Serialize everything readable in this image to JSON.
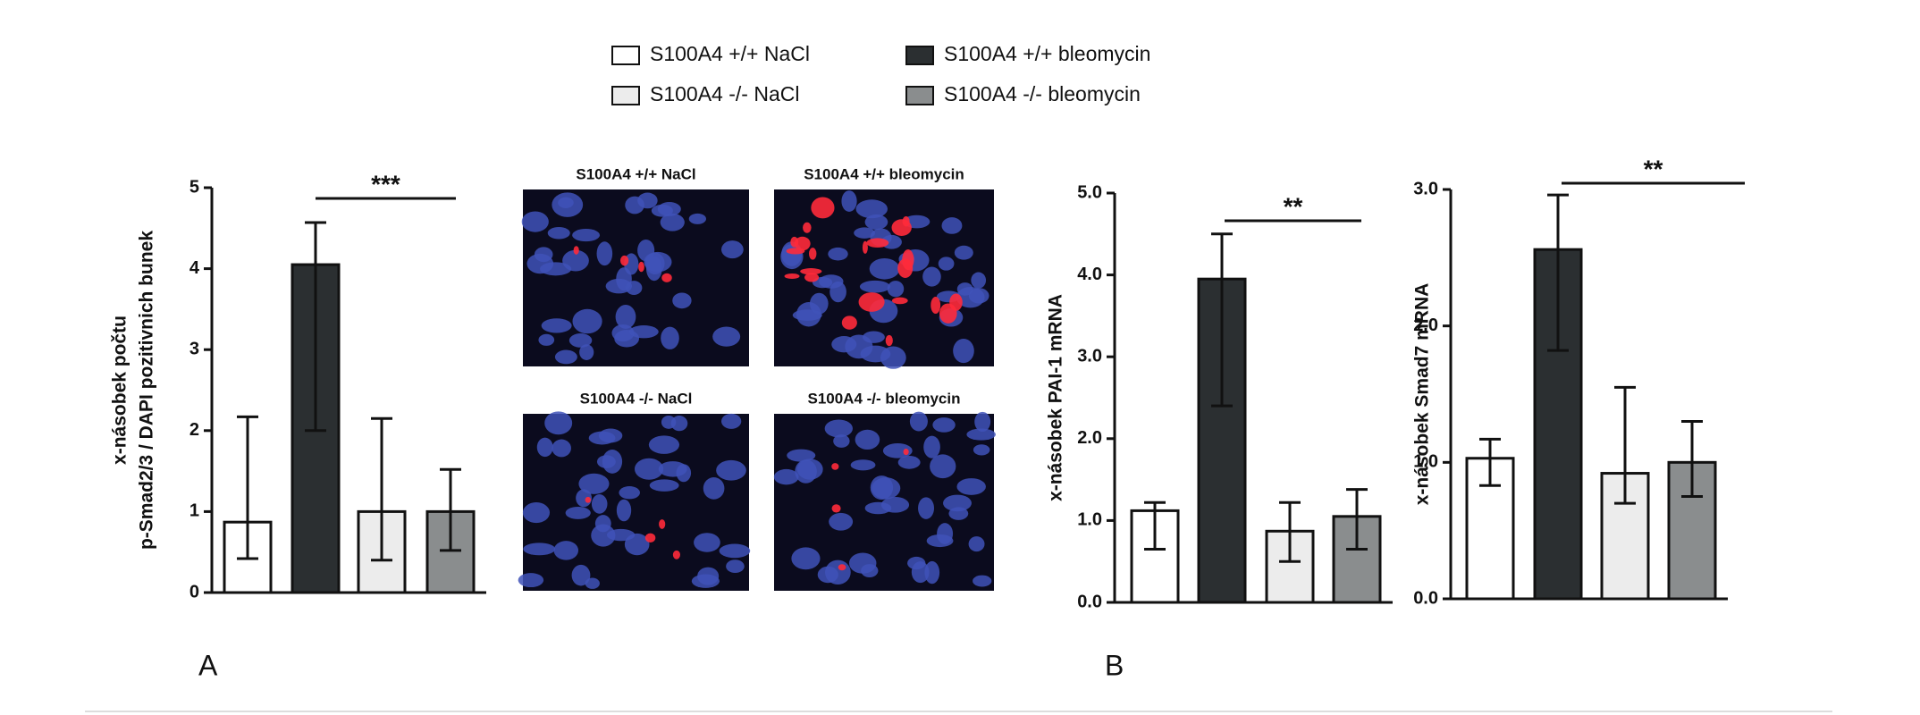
{
  "legend": [
    {
      "name": "S100A4 +/+  NaCl",
      "color": "#ffffff"
    },
    {
      "name": "S100A4 +/+  bleomycin",
      "color": "#2b2f31"
    },
    {
      "name": "S100A4 -/-  NaCl",
      "color": "#ececec"
    },
    {
      "name": "S100A4 -/-  bleomycin",
      "color": "#8a8d8e"
    }
  ],
  "micrographs": [
    "S100A4 +/+  NaCl",
    "S100A4 +/+  bleomycin",
    "S100A4 -/-  NaCl",
    "S100A4 -/-  bleomycin"
  ],
  "panels": [
    "A",
    "B"
  ],
  "chart_data": [
    {
      "type": "bar",
      "y_label": [
        "x-násobek počtu",
        "p-Smad2/3 / DAPI pozitivnich bunek"
      ],
      "values": [
        0.87,
        4.05,
        1.0,
        1.0
      ],
      "err_low": [
        0.42,
        2.0,
        0.4,
        0.52
      ],
      "err_high": [
        2.17,
        4.57,
        2.15,
        1.52
      ],
      "ylim": [
        0,
        5
      ],
      "yticks": [
        0,
        1,
        2,
        3,
        4,
        5
      ],
      "significance": "***"
    },
    {
      "type": "bar",
      "y_label": [
        "x-násobek PAI-1 mRNA"
      ],
      "values": [
        1.12,
        3.95,
        0.87,
        1.05
      ],
      "err_low": [
        0.65,
        2.4,
        0.5,
        0.65
      ],
      "err_high": [
        1.22,
        4.5,
        1.22,
        1.38
      ],
      "ylim": [
        0,
        5
      ],
      "yticks": [
        {
          "value": 0,
          "label": "0.0"
        },
        {
          "value": 1,
          "label": "1.0"
        },
        {
          "value": 2,
          "label": "2.0"
        },
        {
          "value": 3,
          "label": "3.0"
        },
        {
          "value": 4,
          "label": "4.0"
        },
        {
          "value": 5,
          "label": "5.0"
        }
      ],
      "significance": "**"
    },
    {
      "type": "bar",
      "y_label": [
        "x-násobek Smad7 mRNA"
      ],
      "values": [
        1.03,
        2.56,
        0.92,
        1.0
      ],
      "err_low": [
        0.83,
        1.82,
        0.7,
        0.75
      ],
      "err_high": [
        1.17,
        2.96,
        1.55,
        1.3
      ],
      "ylim": [
        0,
        3
      ],
      "yticks": [
        {
          "value": 0,
          "label": "0.0"
        },
        {
          "value": 1,
          "label": "1.0"
        },
        {
          "value": 2,
          "label": "2.0"
        },
        {
          "value": 3,
          "label": "3.0"
        }
      ],
      "significance": "**"
    }
  ]
}
